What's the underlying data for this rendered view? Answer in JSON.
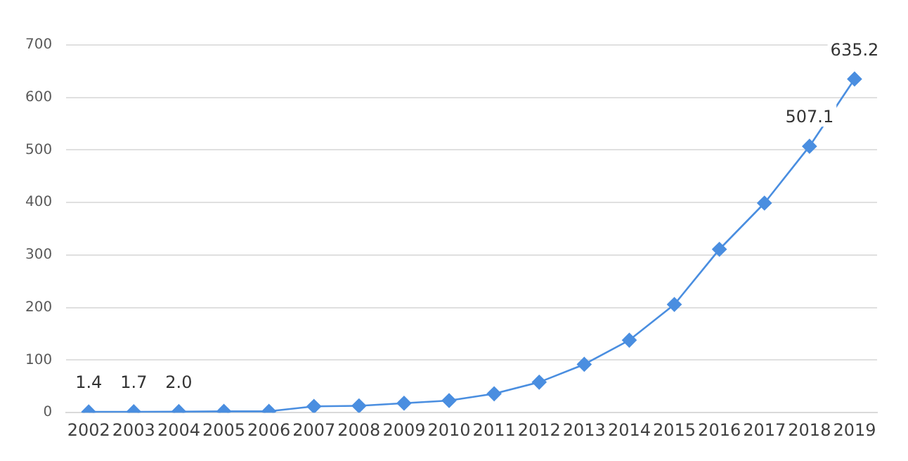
{
  "chart_data": {
    "type": "line",
    "categories": [
      "2002",
      "2003",
      "2004",
      "2005",
      "2006",
      "2007",
      "2008",
      "2009",
      "2010",
      "2011",
      "2012",
      "2013",
      "2014",
      "2015",
      "2016",
      "2017",
      "2018",
      "2019"
    ],
    "series": [
      {
        "color": "#4a8ee0",
        "values": [
          1.4,
          1.7,
          2.0,
          2.5,
          2.5,
          12,
          13,
          18,
          23,
          36,
          58,
          92,
          138,
          206,
          311,
          399,
          507.1,
          635.2
        ],
        "value_labels": [
          "1.4",
          "1.7",
          "2.0",
          null,
          null,
          null,
          null,
          null,
          null,
          null,
          null,
          null,
          null,
          null,
          null,
          null,
          "507.1",
          "635.2"
        ]
      }
    ],
    "ylim": [
      0,
      700
    ],
    "yticks": [
      0,
      100,
      200,
      300,
      400,
      500,
      600,
      700
    ],
    "grid": "y",
    "legend": false,
    "marker": "diamond",
    "line_style": "solid"
  }
}
